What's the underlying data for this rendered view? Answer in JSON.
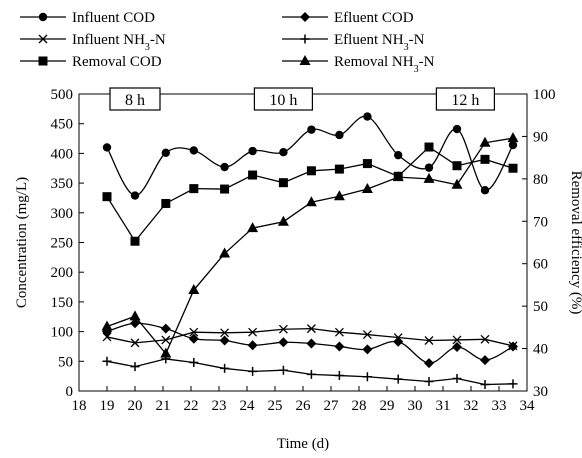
{
  "chart_data": {
    "type": "line",
    "xlabel": "Time (d)",
    "ylabel": "Concentration (mg/L)",
    "y2label": "Removal efficiency (%)",
    "xlim": [
      18,
      34
    ],
    "ylim": [
      0,
      500
    ],
    "y2lim": [
      30,
      100
    ],
    "xticks": [
      "18",
      "19",
      "20",
      "21",
      "22",
      "23",
      "24",
      "25",
      "26",
      "27",
      "28",
      "29",
      "30",
      "31",
      "32",
      "33",
      "34"
    ],
    "yticks": [
      "0",
      "50",
      "100",
      "150",
      "200",
      "250",
      "300",
      "350",
      "400",
      "450",
      "500"
    ],
    "y2ticks": [
      "30",
      "40",
      "50",
      "60",
      "70",
      "80",
      "90",
      "100"
    ],
    "period_labels": [
      {
        "text": "8 h",
        "x": 20
      },
      {
        "text": "10 h",
        "x": 25.3
      },
      {
        "text": "12 h",
        "x": 31.8
      }
    ],
    "series": [
      {
        "name": "Influent COD",
        "axis": "left",
        "marker": "circle",
        "line": "smooth",
        "x": [
          19,
          20,
          21.1,
          22.1,
          23.2,
          24.2,
          25.3,
          26.3,
          27.3,
          28.3,
          29.4,
          30.5,
          31.5,
          32.5,
          33.5
        ],
        "y": [
          410,
          329,
          401,
          405,
          377,
          404,
          402,
          440,
          431,
          462,
          397,
          376,
          441,
          338,
          414
        ]
      },
      {
        "name": "Efluent COD",
        "axis": "left",
        "marker": "diamond",
        "line": "smooth",
        "x": [
          19,
          20,
          21.1,
          22.1,
          23.2,
          24.2,
          25.3,
          26.3,
          27.3,
          28.3,
          29.4,
          30.5,
          31.5,
          32.5,
          33.5
        ],
        "y": [
          100,
          114,
          105,
          88,
          85,
          77,
          82,
          80,
          75,
          70,
          83,
          47,
          74,
          52,
          75
        ]
      },
      {
        "name": "Influent NH3-N",
        "axis": "left",
        "marker": "x",
        "line": "straight",
        "x": [
          19,
          20,
          21.1,
          22.1,
          23.2,
          24.2,
          25.3,
          26.3,
          27.3,
          28.3,
          29.4,
          30.5,
          31.5,
          32.5,
          33.5
        ],
        "y": [
          91,
          81,
          86,
          99,
          98,
          99,
          104,
          105,
          99,
          95,
          90,
          85,
          86,
          87,
          76
        ]
      },
      {
        "name": "Efluent NH3-N",
        "axis": "left",
        "marker": "plus",
        "line": "straight",
        "x": [
          19,
          20,
          21.1,
          22.1,
          23.2,
          24.2,
          25.3,
          26.3,
          27.3,
          28.3,
          29.4,
          30.5,
          31.5,
          32.5,
          33.5
        ],
        "y": [
          50,
          41,
          54,
          48,
          38,
          33,
          35,
          28,
          26,
          24,
          20,
          16,
          21,
          11,
          12
        ]
      },
      {
        "name": "Removal COD",
        "axis": "right",
        "marker": "square",
        "line": "straight",
        "x": [
          19,
          20,
          21.1,
          22.1,
          23.2,
          24.2,
          25.3,
          26.3,
          27.3,
          28.3,
          29.4,
          30.5,
          31.5,
          32.5,
          33.5
        ],
        "y": [
          75.8,
          65.3,
          74.2,
          77.7,
          77.6,
          80.9,
          79.1,
          81.9,
          82.3,
          83.6,
          80.6,
          87.5,
          83.1,
          84.6,
          82.5
        ]
      },
      {
        "name": "Removal NH3-N",
        "axis": "right",
        "marker": "triangle",
        "line": "straight",
        "x": [
          19,
          20,
          21.1,
          22.1,
          23.2,
          24.2,
          25.3,
          26.3,
          27.3,
          28.3,
          29.4,
          30.5,
          31.5,
          32.5,
          33.5
        ],
        "y": [
          45.2,
          47.6,
          38.8,
          53.8,
          62.4,
          68.4,
          69.9,
          74.5,
          75.9,
          77.6,
          80.4,
          80,
          78.6,
          88.5,
          89.6
        ]
      }
    ]
  }
}
